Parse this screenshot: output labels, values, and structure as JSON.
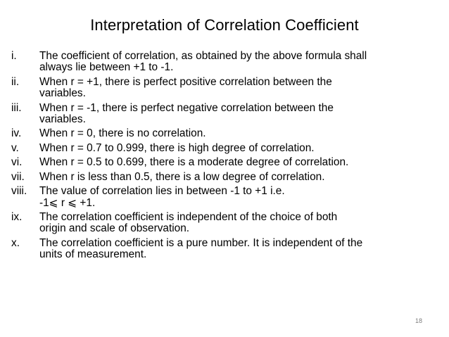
{
  "slide": {
    "title": "Interpretation of Correlation Coefficient",
    "items": [
      {
        "num": "i.",
        "lines": [
          "The coefficient of correlation, as obtained by the above formula shall",
          "always lie between +1 to -1."
        ]
      },
      {
        "num": "ii.",
        "lines": [
          "When r = +1, there is perfect positive correlation between the",
          "variables."
        ]
      },
      {
        "num": "iii.",
        "lines": [
          "When r = -1, there is perfect negative correlation between the",
          "variables."
        ]
      },
      {
        "num": "iv.",
        "lines": [
          "When r = 0, there is no correlation."
        ]
      },
      {
        "num": "v.",
        "lines": [
          "When r = 0.7 to 0.999, there is high degree of correlation."
        ]
      },
      {
        "num": "vi.",
        "lines": [
          "When r = 0.5 to 0.699, there is a moderate degree of correlation."
        ]
      },
      {
        "num": "vii.",
        "lines": [
          "When r is less than 0.5, there is a low degree of correlation."
        ]
      },
      {
        "num": "viii.",
        "lines": [
          "The value of correlation lies in between -1 to +1 i.e.",
          "-1⩽ r ⩽ +1."
        ]
      },
      {
        "num": "ix.",
        "lines": [
          "The correlation coefficient is independent  of the choice of both",
          "origin and scale of observation."
        ]
      },
      {
        "num": "x.",
        "lines": [
          "The correlation coefficient is a pure number. It is independent of the",
          "units of measurement."
        ]
      }
    ],
    "page_number": "18"
  }
}
